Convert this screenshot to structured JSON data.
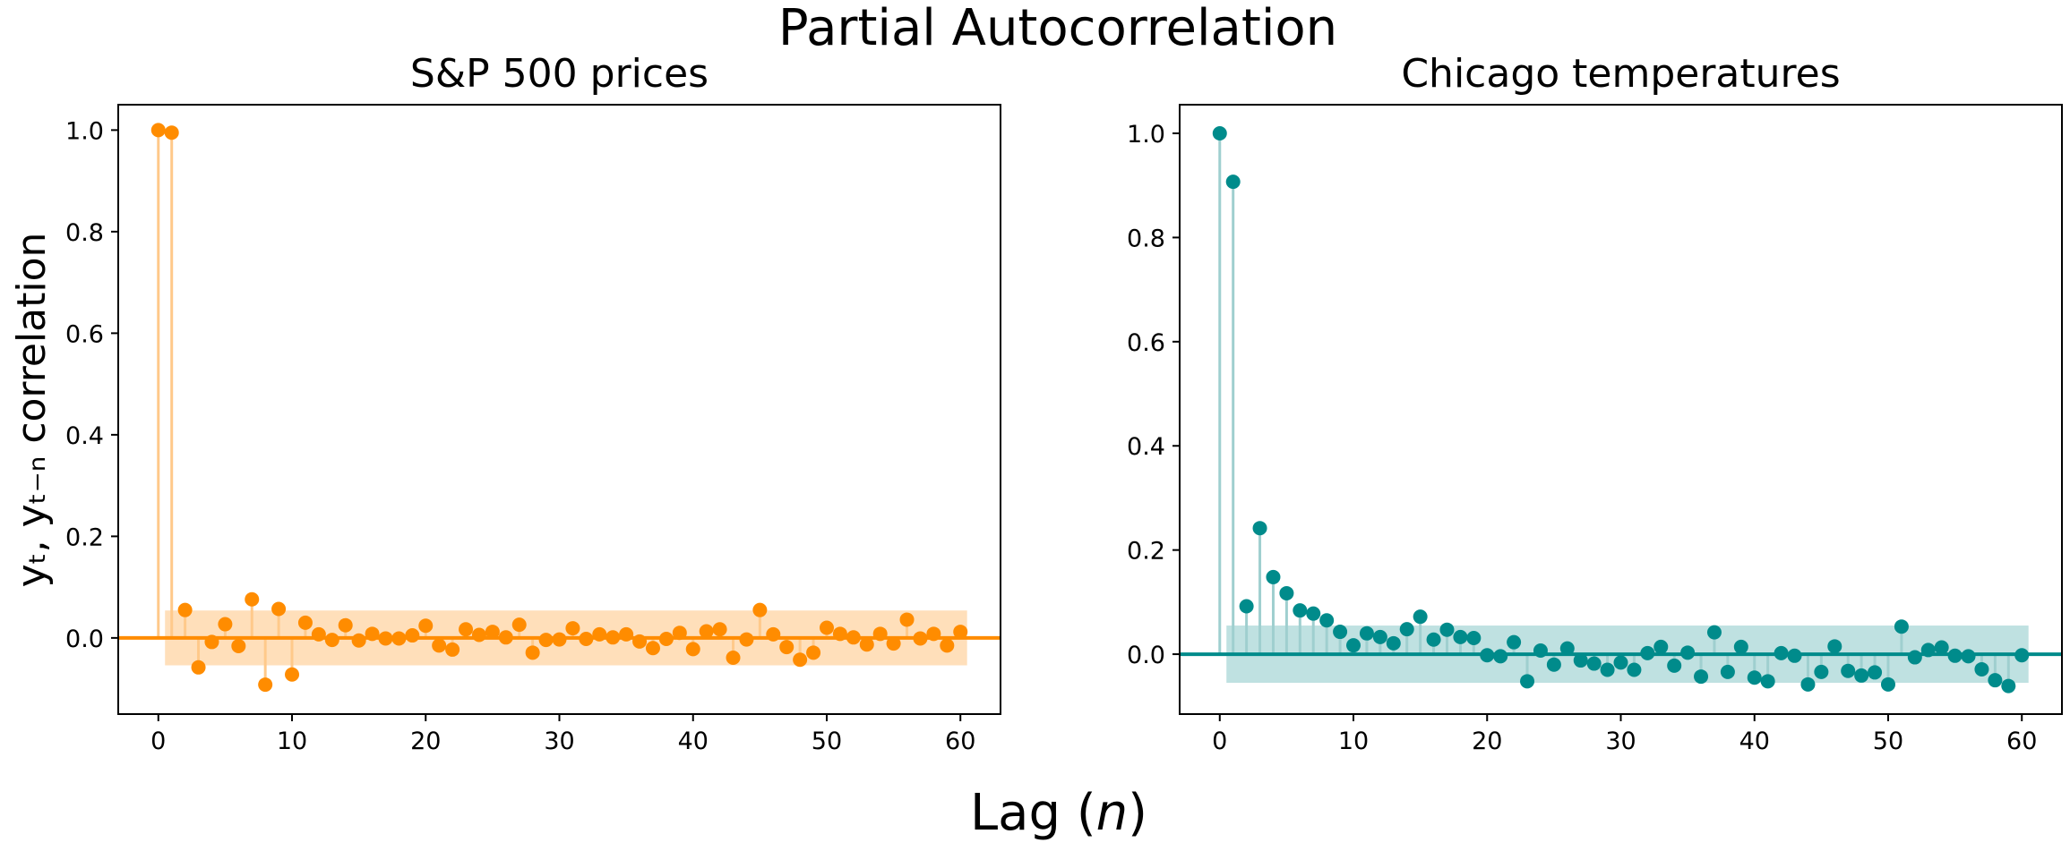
{
  "figure": {
    "suptitle": "Partial Autocorrelation",
    "xlabel_prefix": "Lag (",
    "xlabel_var": "n",
    "xlabel_suffix": ")",
    "ylabel": "yₜ, yₜ₋ₙ correlation"
  },
  "chart_data": [
    {
      "type": "stem",
      "title": "S&P 500 prices",
      "color": "#ff8c00",
      "band_color": "#ffdfba",
      "stem_color": "#ffc98a",
      "xlim": [
        -3,
        63
      ],
      "ylim": [
        -0.15,
        1.05
      ],
      "xticks": [
        0,
        10,
        20,
        30,
        40,
        50,
        60
      ],
      "yticks": [
        0.0,
        0.2,
        0.4,
        0.6,
        0.8,
        1.0
      ],
      "ytick_labels": [
        "0.0",
        "0.2",
        "0.4",
        "0.6",
        "0.8",
        "1.0"
      ],
      "confidence_band": [
        -0.054,
        0.054
      ],
      "x": [
        0,
        1,
        2,
        3,
        4,
        5,
        6,
        7,
        8,
        9,
        10,
        11,
        12,
        13,
        14,
        15,
        16,
        17,
        18,
        19,
        20,
        21,
        22,
        23,
        24,
        25,
        26,
        27,
        28,
        29,
        30,
        31,
        32,
        33,
        34,
        35,
        36,
        37,
        38,
        39,
        40,
        41,
        42,
        43,
        44,
        45,
        46,
        47,
        48,
        49,
        50,
        51,
        52,
        53,
        54,
        55,
        56,
        57,
        58,
        59,
        60
      ],
      "values": [
        1.0,
        0.995,
        0.055,
        -0.058,
        -0.008,
        0.027,
        -0.016,
        0.076,
        -0.092,
        0.057,
        -0.072,
        0.03,
        0.007,
        -0.004,
        0.025,
        -0.005,
        0.008,
        -0.001,
        -0.001,
        0.005,
        0.024,
        -0.015,
        -0.023,
        0.017,
        0.006,
        0.012,
        0.001,
        0.026,
        -0.029,
        -0.004,
        -0.003,
        0.019,
        -0.002,
        0.007,
        0.001,
        0.007,
        -0.007,
        -0.02,
        -0.002,
        0.01,
        -0.022,
        0.013,
        0.017,
        -0.039,
        -0.003,
        0.055,
        0.007,
        -0.018,
        -0.043,
        -0.029,
        0.02,
        0.008,
        0.001,
        -0.013,
        0.008,
        -0.011,
        0.036,
        -0.001,
        0.008,
        -0.015,
        0.012
      ]
    },
    {
      "type": "stem",
      "title": "Chicago temperatures",
      "color": "#008b8b",
      "band_color": "#bfe1e1",
      "stem_color": "#9fcfcf",
      "xlim": [
        -3,
        63
      ],
      "ylim": [
        -0.115,
        1.055
      ],
      "xticks": [
        0,
        10,
        20,
        30,
        40,
        50,
        60
      ],
      "yticks": [
        0.0,
        0.2,
        0.4,
        0.6,
        0.8,
        1.0
      ],
      "ytick_labels": [
        "0.0",
        "0.2",
        "0.4",
        "0.6",
        "0.8",
        "1.0"
      ],
      "confidence_band": [
        -0.055,
        0.055
      ],
      "x": [
        0,
        1,
        2,
        3,
        4,
        5,
        6,
        7,
        8,
        9,
        10,
        11,
        12,
        13,
        14,
        15,
        16,
        17,
        18,
        19,
        20,
        21,
        22,
        23,
        24,
        25,
        26,
        27,
        28,
        29,
        30,
        31,
        32,
        33,
        34,
        35,
        36,
        37,
        38,
        39,
        40,
        41,
        42,
        43,
        44,
        45,
        46,
        47,
        48,
        49,
        50,
        51,
        52,
        53,
        54,
        55,
        56,
        57,
        58,
        59,
        60
      ],
      "values": [
        1.0,
        0.907,
        0.092,
        0.242,
        0.148,
        0.117,
        0.084,
        0.078,
        0.065,
        0.043,
        0.017,
        0.04,
        0.033,
        0.021,
        0.048,
        0.072,
        0.028,
        0.047,
        0.033,
        0.031,
        -0.002,
        -0.004,
        0.023,
        -0.052,
        0.007,
        -0.02,
        0.011,
        -0.012,
        -0.018,
        -0.03,
        -0.016,
        -0.03,
        0.002,
        0.014,
        -0.022,
        0.003,
        -0.043,
        0.042,
        -0.034,
        0.014,
        -0.045,
        -0.052,
        0.002,
        -0.003,
        -0.058,
        -0.034,
        0.015,
        -0.032,
        -0.041,
        -0.035,
        -0.058,
        0.053,
        -0.006,
        0.008,
        0.013,
        -0.003,
        -0.004,
        -0.029,
        -0.05,
        -0.061,
        -0.002
      ]
    }
  ]
}
